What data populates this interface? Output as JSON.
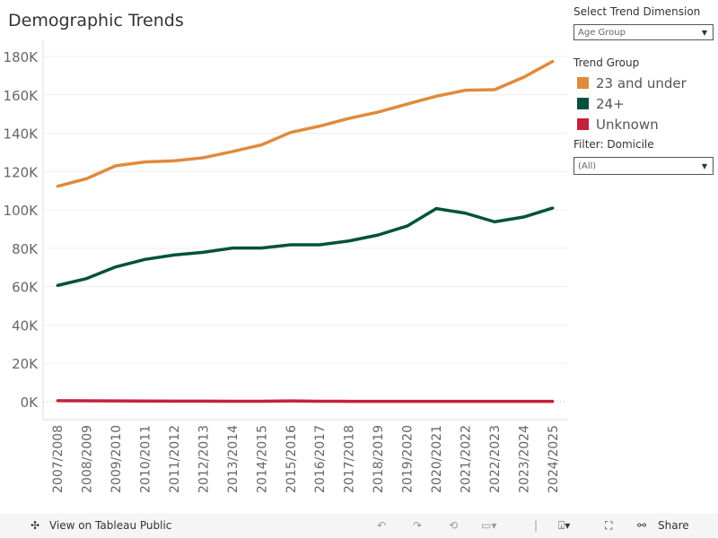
{
  "chart_data": {
    "type": "line",
    "title": "Demographic Trends",
    "categories": [
      "2007/2008",
      "2008/2009",
      "2009/2010",
      "2010/2011",
      "2011/2012",
      "2012/2013",
      "2013/2014",
      "2014/2015",
      "2015/2016",
      "2016/2017",
      "2017/2018",
      "2018/2019",
      "2019/2020",
      "2020/2021",
      "2021/2022",
      "2022/2023",
      "2023/2024",
      "2024/2025"
    ],
    "ylim": [
      0,
      180000
    ],
    "yticks": [
      0,
      20000,
      40000,
      60000,
      80000,
      100000,
      120000,
      140000,
      160000,
      180000
    ],
    "ytick_labels": [
      "0K",
      "20K",
      "40K",
      "60K",
      "80K",
      "100K",
      "120K",
      "140K",
      "160K",
      "180K"
    ],
    "grid": true,
    "legend_placement": "right",
    "series": [
      {
        "name": "23 and under",
        "color": "#E08A3C",
        "values": [
          112300,
          116300,
          123000,
          125000,
          125600,
          127200,
          130400,
          133900,
          140400,
          143700,
          147700,
          151000,
          155200,
          159300,
          162400,
          162700,
          169200,
          177500
        ]
      },
      {
        "name": "24+",
        "color": "#00513C",
        "values": [
          60600,
          64200,
          70300,
          74200,
          76500,
          77900,
          80100,
          80100,
          81800,
          81800,
          83800,
          86900,
          91600,
          100700,
          98300,
          93800,
          96300,
          101000
        ]
      },
      {
        "name": "Unknown",
        "color": "#C4213A",
        "values": [
          500,
          450,
          400,
          350,
          300,
          300,
          250,
          250,
          400,
          250,
          200,
          150,
          150,
          150,
          150,
          150,
          150,
          150
        ]
      }
    ]
  },
  "controls": {
    "trend_dimension_label": "Select Trend Dimension",
    "trend_dimension_value": "Age Group",
    "legend_title": "Trend Group",
    "filter_label": "Filter: Domicile",
    "filter_value": "(All)"
  },
  "toolbar": {
    "view_label": "View on Tableau Public",
    "share_label": "Share"
  }
}
